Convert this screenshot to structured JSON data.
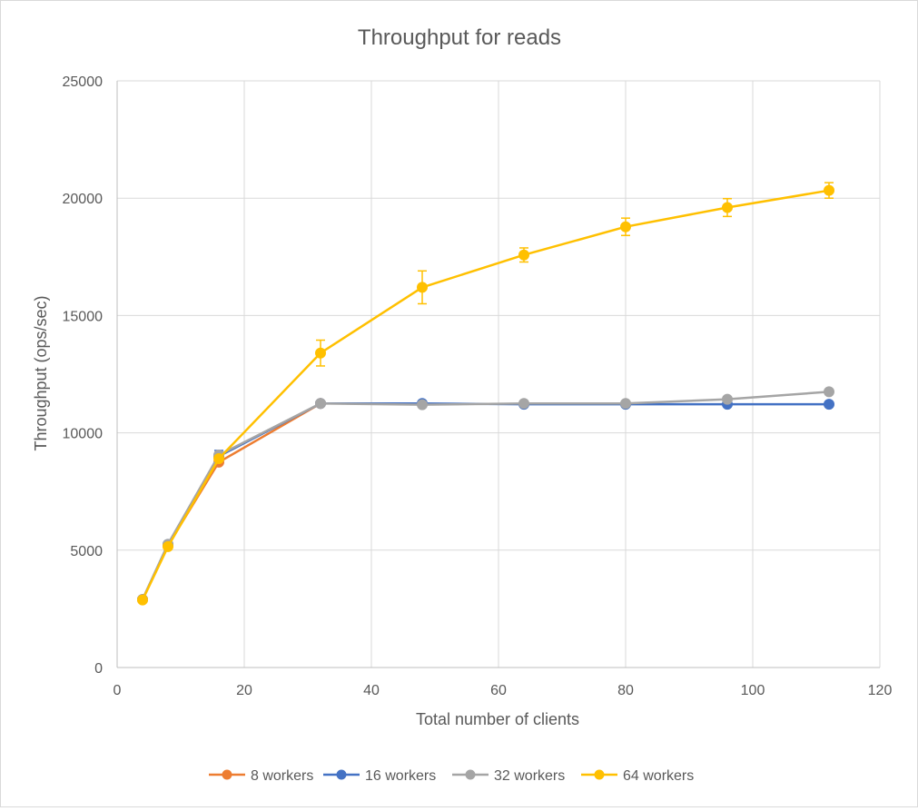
{
  "chart_data": {
    "type": "line",
    "title": "Throughput for reads",
    "xlabel": "Total number of clients",
    "ylabel": "Throughput (ops/sec)",
    "xlim": [
      0,
      120
    ],
    "ylim": [
      0,
      25000
    ],
    "x_ticks": [
      0,
      20,
      40,
      60,
      80,
      100,
      120
    ],
    "y_ticks": [
      0,
      5000,
      10000,
      15000,
      20000,
      25000
    ],
    "grid": true,
    "legend_position": "bottom",
    "series": [
      {
        "name": "8 workers",
        "color": "#ed7d31",
        "points": [
          [
            4,
            2900
          ],
          [
            8,
            5200
          ],
          [
            16,
            8750
          ],
          [
            32,
            11250
          ]
        ]
      },
      {
        "name": "16 workers",
        "color": "#4472c4",
        "points": [
          [
            4,
            2900
          ],
          [
            8,
            5250
          ],
          [
            16,
            9000
          ],
          [
            32,
            11250
          ],
          [
            48,
            11250
          ],
          [
            64,
            11220
          ],
          [
            80,
            11220
          ],
          [
            96,
            11220
          ],
          [
            112,
            11220
          ]
        ],
        "errors": [
          0,
          0,
          250,
          0,
          0,
          0,
          0,
          0,
          0
        ]
      },
      {
        "name": "32 workers",
        "color": "#a5a5a5",
        "points": [
          [
            4,
            2900
          ],
          [
            8,
            5250
          ],
          [
            16,
            9050
          ],
          [
            32,
            11250
          ],
          [
            48,
            11200
          ],
          [
            64,
            11250
          ],
          [
            80,
            11250
          ],
          [
            96,
            11430
          ],
          [
            112,
            11750
          ]
        ]
      },
      {
        "name": "64 workers",
        "color": "#ffc000",
        "points": [
          [
            4,
            2880
          ],
          [
            8,
            5150
          ],
          [
            16,
            8900
          ],
          [
            32,
            13400
          ],
          [
            48,
            16200
          ],
          [
            64,
            17580
          ],
          [
            80,
            18780
          ],
          [
            96,
            19600
          ],
          [
            112,
            20330
          ]
        ],
        "errors": [
          0,
          0,
          150,
          550,
          700,
          300,
          370,
          380,
          330
        ]
      }
    ]
  }
}
